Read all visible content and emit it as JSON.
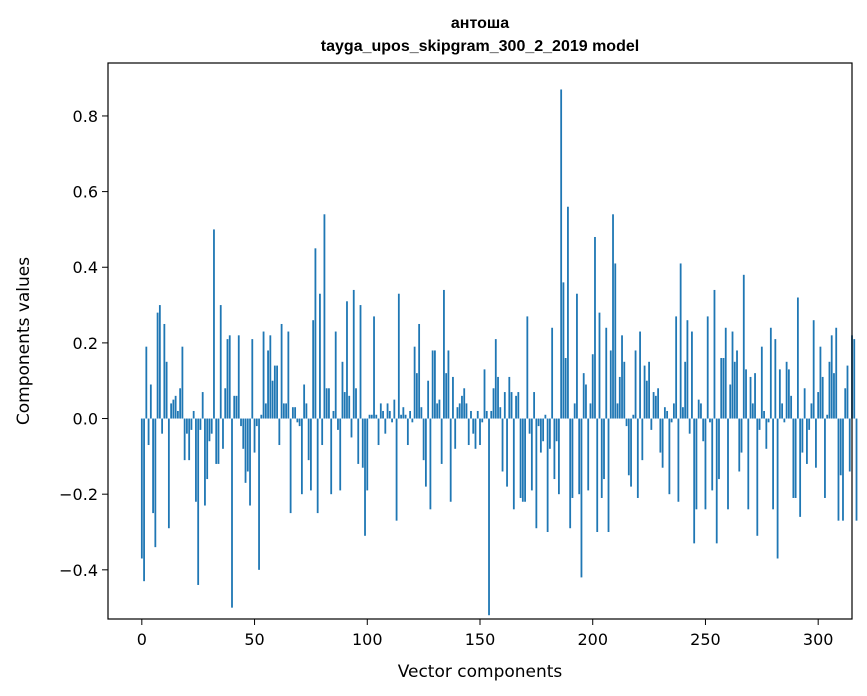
{
  "chart_data": {
    "type": "bar",
    "title": "антоша",
    "subtitle": "tayga_upos_skipgram_300_2_2019 model",
    "xlabel": "Vector components",
    "ylabel": "Components values",
    "xlim": [
      -15,
      315
    ],
    "ylim": [
      -0.53,
      0.94
    ],
    "xticks": [
      0,
      50,
      100,
      150,
      200,
      250,
      300
    ],
    "xtick_labels": [
      "0",
      "50",
      "100",
      "150",
      "200",
      "250",
      "300"
    ],
    "yticks": [
      -0.4,
      -0.2,
      0.0,
      0.2,
      0.4,
      0.6,
      0.8
    ],
    "ytick_labels": [
      "−0.4",
      "−0.2",
      "0.0",
      "0.2",
      "0.4",
      "0.6",
      "0.8"
    ],
    "bar_color": "#1f77b4",
    "grid": false,
    "legend": "none",
    "values": [
      -0.37,
      -0.43,
      0.19,
      -0.07,
      0.09,
      -0.25,
      -0.34,
      0.28,
      0.3,
      -0.04,
      0.25,
      0.15,
      -0.29,
      0.04,
      0.05,
      0.06,
      0.02,
      0.08,
      0.19,
      -0.11,
      -0.04,
      -0.11,
      -0.03,
      0.02,
      -0.22,
      -0.44,
      -0.03,
      0.07,
      -0.23,
      -0.16,
      -0.06,
      -0.04,
      0.5,
      -0.12,
      -0.12,
      0.3,
      -0.08,
      0.08,
      0.21,
      0.22,
      -0.5,
      0.06,
      0.06,
      0.22,
      -0.02,
      -0.08,
      -0.17,
      -0.14,
      -0.23,
      0.21,
      -0.09,
      -0.02,
      -0.4,
      0.01,
      0.23,
      0.04,
      0.18,
      0.22,
      0.1,
      0.14,
      0.14,
      -0.07,
      0.25,
      0.04,
      0.04,
      0.23,
      -0.25,
      0.03,
      0.03,
      -0.01,
      -0.02,
      -0.2,
      0.09,
      0.04,
      -0.11,
      -0.19,
      0.26,
      0.45,
      -0.25,
      0.33,
      -0.07,
      0.54,
      0.08,
      0.08,
      -0.2,
      0.02,
      0.23,
      -0.03,
      -0.19,
      0.15,
      0.07,
      0.31,
      0.06,
      -0.05,
      0.34,
      0.08,
      -0.12,
      0.3,
      -0.13,
      -0.31,
      -0.19,
      0.01,
      0.01,
      0.27,
      0.01,
      -0.07,
      0.04,
      0.02,
      -0.04,
      0.04,
      0.02,
      -0.01,
      0.05,
      -0.27,
      0.33,
      0.01,
      0.03,
      0.01,
      -0.07,
      0.02,
      -0.01,
      0.19,
      0.12,
      0.25,
      0.03,
      -0.11,
      -0.18,
      0.1,
      -0.24,
      0.18,
      0.18,
      0.04,
      0.05,
      -0.12,
      0.34,
      0.12,
      0.18,
      -0.22,
      0.11,
      -0.08,
      0.03,
      0.04,
      0.06,
      0.08,
      0.04,
      -0.07,
      0.02,
      -0.04,
      -0.08,
      0.02,
      -0.07,
      -0.01,
      0.13,
      0.02,
      -0.52,
      0.02,
      0.08,
      0.21,
      0.11,
      0.03,
      -0.14,
      0.07,
      -0.18,
      0.11,
      0.07,
      -0.24,
      0.06,
      0.07,
      -0.21,
      -0.22,
      -0.22,
      0.27,
      -0.04,
      -0.19,
      0.07,
      -0.29,
      -0.02,
      -0.09,
      -0.06,
      0.01,
      -0.3,
      -0.08,
      0.24,
      -0.16,
      -0.06,
      -0.2,
      0.87,
      0.36,
      0.16,
      0.56,
      -0.29,
      -0.21,
      0.04,
      0.33,
      -0.2,
      -0.42,
      0.12,
      0.09,
      -0.19,
      0.04,
      0.17,
      0.48,
      -0.3,
      0.28,
      -0.21,
      -0.16,
      0.24,
      -0.3,
      0.18,
      0.54,
      0.41,
      0.04,
      0.11,
      0.22,
      0.15,
      -0.02,
      -0.15,
      -0.18,
      0.01,
      0.18,
      -0.21,
      0.23,
      -0.11,
      0.14,
      0.1,
      0.15,
      -0.03,
      0.07,
      0.06,
      0.08,
      -0.09,
      -0.13,
      0.03,
      0.02,
      -0.2,
      -0.01,
      0.04,
      0.27,
      -0.22,
      0.41,
      0.03,
      0.15,
      0.26,
      -0.04,
      0.23,
      -0.33,
      -0.24,
      0.05,
      0.04,
      -0.06,
      -0.24,
      0.27,
      -0.01,
      -0.19,
      0.34,
      -0.33,
      -0.16,
      0.16,
      0.16,
      0.24,
      -0.24,
      0.09,
      0.23,
      0.15,
      0.18,
      -0.14,
      -0.09,
      0.38,
      0.13,
      -0.24,
      0.11,
      0.04,
      0.12,
      -0.31,
      -0.03,
      0.19,
      0.02,
      -0.08,
      -0.01,
      0.24,
      -0.24,
      0.21,
      -0.37,
      0.13,
      0.04,
      -0.01,
      0.15,
      0.13,
      0.06,
      -0.21,
      -0.21,
      0.32,
      -0.26,
      -0.09,
      0.08,
      -0.12,
      -0.03,
      0.04,
      0.26,
      -0.13,
      0.07,
      0.19,
      0.11,
      -0.21,
      0.01,
      0.15,
      0.22,
      0.12,
      0.24,
      -0.27,
      -0.15,
      -0.27,
      0.08,
      0.14,
      -0.14,
      0.22,
      0.21,
      -0.27
    ]
  }
}
